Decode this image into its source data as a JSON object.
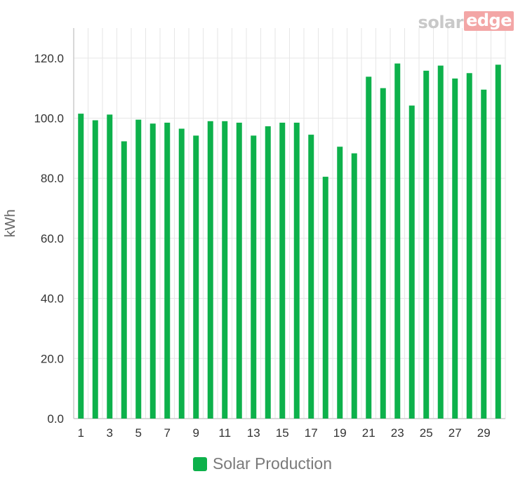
{
  "brand": {
    "logo_part1": "solar",
    "logo_part2": "edge"
  },
  "colors": {
    "bar": "#0db14b",
    "grid": "#e6e6e6",
    "axis": "#cccccc",
    "tick_text": "#333333",
    "axis_label_text": "#666666"
  },
  "chart_data": {
    "type": "bar",
    "title": "",
    "xlabel": "",
    "ylabel": "kWh",
    "ylim": [
      0,
      130
    ],
    "yticks": [
      "0.0",
      "20.0",
      "40.0",
      "60.0",
      "80.0",
      "100.0",
      "120.0"
    ],
    "categories": [
      1,
      2,
      3,
      4,
      5,
      6,
      7,
      8,
      9,
      10,
      11,
      12,
      13,
      14,
      15,
      16,
      17,
      18,
      19,
      20,
      21,
      22,
      23,
      24,
      25,
      26,
      27,
      28,
      29,
      30
    ],
    "x_tick_labels": [
      "1",
      "3",
      "5",
      "7",
      "9",
      "11",
      "13",
      "15",
      "17",
      "19",
      "21",
      "23",
      "25",
      "27",
      "29"
    ],
    "grid": true,
    "legend_position": "bottom",
    "series": [
      {
        "name": "Solar Production",
        "values": [
          101.5,
          99.3,
          101.2,
          92.3,
          99.5,
          98.2,
          98.5,
          96.5,
          94.2,
          99.0,
          99.0,
          98.5,
          94.2,
          97.3,
          98.5,
          98.5,
          94.5,
          80.5,
          90.5,
          88.3,
          113.8,
          110.0,
          118.2,
          104.2,
          115.8,
          117.5,
          113.2,
          115.0,
          109.5,
          117.8
        ]
      }
    ]
  }
}
